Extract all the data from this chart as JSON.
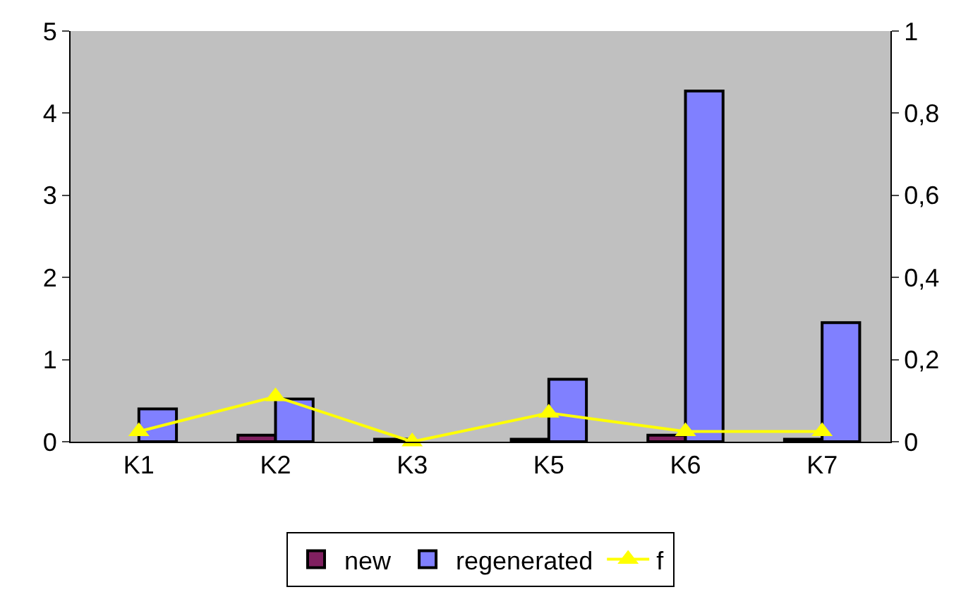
{
  "chart_data": {
    "type": "bar",
    "categories": [
      "K1",
      "K2",
      "K3",
      "K5",
      "K6",
      "K7"
    ],
    "series": [
      {
        "name": "new",
        "color": "#802060",
        "values": [
          null,
          0.08,
          0.03,
          0.03,
          0.08,
          0.03
        ]
      },
      {
        "name": "regenerated",
        "color": "#8080ff",
        "values": [
          0.4,
          0.52,
          null,
          0.76,
          4.27,
          1.45
        ]
      },
      {
        "name": "f",
        "type": "line",
        "axis": "y2",
        "color": "#ffff00",
        "marker": "triangle",
        "values": [
          0.025,
          0.11,
          0.0,
          0.07,
          0.025,
          0.025
        ]
      }
    ],
    "ylim": [
      0,
      5
    ],
    "yticks": [
      0,
      1,
      2,
      3,
      4,
      5
    ],
    "y2lim": [
      0,
      1
    ],
    "y2ticks": [
      0,
      {
        "value": 0.2,
        "label": "0,2"
      },
      {
        "value": 0.4,
        "label": "0,4"
      },
      {
        "value": 0.6,
        "label": "0,6"
      },
      {
        "value": 0.8,
        "label": "0,8"
      },
      1
    ],
    "grid": false,
    "legend": "bottom"
  }
}
